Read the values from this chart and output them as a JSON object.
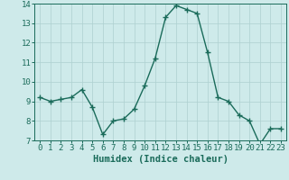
{
  "x": [
    0,
    1,
    2,
    3,
    4,
    5,
    6,
    7,
    8,
    9,
    10,
    11,
    12,
    13,
    14,
    15,
    16,
    17,
    18,
    19,
    20,
    21,
    22,
    23
  ],
  "y": [
    9.2,
    9.0,
    9.1,
    9.2,
    9.6,
    8.7,
    7.3,
    8.0,
    8.1,
    8.6,
    9.8,
    11.2,
    13.3,
    13.9,
    13.7,
    13.5,
    11.5,
    9.2,
    9.0,
    8.3,
    8.0,
    6.8,
    7.6,
    7.6
  ],
  "xlabel": "Humidex (Indice chaleur)",
  "ylim": [
    7,
    14
  ],
  "xlim": [
    -0.5,
    23.5
  ],
  "yticks": [
    7,
    8,
    9,
    10,
    11,
    12,
    13,
    14
  ],
  "xticks": [
    0,
    1,
    2,
    3,
    4,
    5,
    6,
    7,
    8,
    9,
    10,
    11,
    12,
    13,
    14,
    15,
    16,
    17,
    18,
    19,
    20,
    21,
    22,
    23
  ],
  "line_color": "#1a6b5a",
  "marker_color": "#1a6b5a",
  "bg_color": "#ceeaea",
  "grid_color": "#aed0d0",
  "axes_color": "#1a6b5a",
  "xlabel_fontsize": 7.5,
  "tick_fontsize": 6.5,
  "line_width": 1.0,
  "marker_size": 4
}
